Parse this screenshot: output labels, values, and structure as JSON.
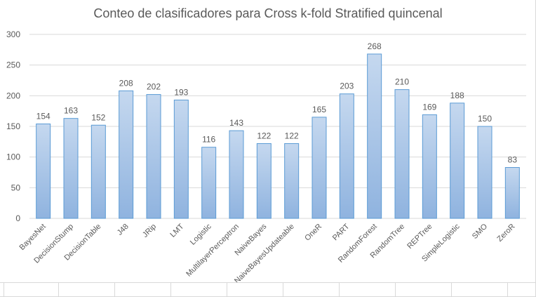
{
  "chart_data": {
    "type": "bar",
    "title": "Conteo de clasificadores para Cross k-fold Stratified quincenal",
    "xlabel": "",
    "ylabel": "",
    "categories": [
      "BayesNet",
      "DecisionStump",
      "DecisionTable",
      "J48",
      "JRip",
      "LMT",
      "Logistic",
      "MultilayerPerceptron",
      "NaiveBayes",
      "NaiveBayesUpdateable",
      "OneR",
      "PART",
      "RandomForest",
      "RandomTree",
      "REPTree",
      "SimpleLogistic",
      "SMO",
      "ZeroR"
    ],
    "values": [
      154,
      163,
      152,
      208,
      202,
      193,
      116,
      143,
      122,
      122,
      165,
      203,
      268,
      210,
      169,
      188,
      150,
      83
    ],
    "ylim": [
      0,
      300
    ],
    "yticks": [
      0,
      50,
      100,
      150,
      200,
      250,
      300
    ],
    "grid": true,
    "legend": "none",
    "data_labels": true,
    "colors": {
      "bar_top": "#c5d8ef",
      "bar_bottom": "#8fb3df",
      "bar_border": "#5b9bd5",
      "grid": "#d9d9d9",
      "text": "#595959"
    }
  }
}
